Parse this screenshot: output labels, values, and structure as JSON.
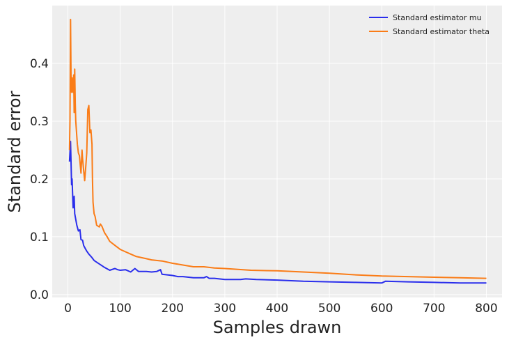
{
  "chart_data": {
    "type": "line",
    "title": "",
    "xlabel": "Samples drawn",
    "ylabel": "Standard error",
    "xlim": [
      -30,
      830
    ],
    "ylim": [
      -0.005,
      0.5
    ],
    "xticks": [
      0,
      100,
      200,
      300,
      400,
      500,
      600,
      700,
      800
    ],
    "yticks": [
      0.0,
      0.1,
      0.2,
      0.3,
      0.4
    ],
    "xtick_labels": [
      "0",
      "100",
      "200",
      "300",
      "400",
      "500",
      "600",
      "700",
      "800"
    ],
    "ytick_labels": [
      "0.0",
      "0.1",
      "0.2",
      "0.3",
      "0.4"
    ],
    "grid": true,
    "legend_position": "top-right",
    "series": [
      {
        "name": "Standard estimator mu",
        "color": "#2a2eec",
        "x": [
          3,
          5,
          7,
          8,
          10,
          12,
          13,
          15,
          17,
          20,
          23,
          25,
          28,
          30,
          33,
          36,
          40,
          45,
          50,
          55,
          60,
          70,
          80,
          90,
          95,
          100,
          110,
          120,
          128,
          135,
          150,
          160,
          170,
          177,
          180,
          190,
          200,
          210,
          220,
          240,
          260,
          265,
          270,
          280,
          300,
          320,
          330,
          340,
          360,
          400,
          450,
          500,
          550,
          600,
          607,
          650,
          700,
          750,
          800
        ],
        "y": [
          0.23,
          0.265,
          0.19,
          0.2,
          0.15,
          0.17,
          0.14,
          0.13,
          0.12,
          0.11,
          0.112,
          0.095,
          0.094,
          0.085,
          0.08,
          0.075,
          0.07,
          0.065,
          0.059,
          0.056,
          0.053,
          0.047,
          0.042,
          0.045,
          0.043,
          0.042,
          0.043,
          0.039,
          0.045,
          0.04,
          0.04,
          0.039,
          0.04,
          0.043,
          0.035,
          0.034,
          0.033,
          0.031,
          0.031,
          0.029,
          0.029,
          0.031,
          0.028,
          0.028,
          0.026,
          0.026,
          0.026,
          0.027,
          0.026,
          0.025,
          0.023,
          0.022,
          0.021,
          0.02,
          0.023,
          0.022,
          0.021,
          0.02,
          0.02
        ]
      },
      {
        "name": "Standard estimator theta",
        "color": "#fa7c17",
        "x": [
          3,
          4,
          5,
          6,
          7,
          8,
          9,
          10,
          11,
          12,
          13,
          14,
          15,
          18,
          20,
          22,
          25,
          27,
          28,
          30,
          32,
          34,
          36,
          38,
          40,
          42,
          44,
          46,
          47,
          48,
          50,
          52,
          55,
          60,
          62,
          65,
          70,
          75,
          80,
          90,
          100,
          110,
          120,
          130,
          150,
          160,
          180,
          200,
          220,
          240,
          260,
          280,
          300,
          350,
          400,
          450,
          500,
          550,
          600,
          650,
          700,
          750,
          800
        ],
        "y": [
          0.25,
          0.3,
          0.476,
          0.38,
          0.35,
          0.375,
          0.36,
          0.35,
          0.38,
          0.315,
          0.39,
          0.33,
          0.3,
          0.26,
          0.245,
          0.24,
          0.21,
          0.25,
          0.235,
          0.215,
          0.197,
          0.22,
          0.245,
          0.32,
          0.327,
          0.28,
          0.285,
          0.26,
          0.2,
          0.16,
          0.14,
          0.135,
          0.12,
          0.117,
          0.122,
          0.118,
          0.107,
          0.1,
          0.092,
          0.085,
          0.078,
          0.074,
          0.07,
          0.066,
          0.062,
          0.06,
          0.058,
          0.054,
          0.051,
          0.048,
          0.048,
          0.046,
          0.045,
          0.042,
          0.041,
          0.039,
          0.037,
          0.034,
          0.032,
          0.031,
          0.03,
          0.029,
          0.028
        ]
      }
    ]
  }
}
